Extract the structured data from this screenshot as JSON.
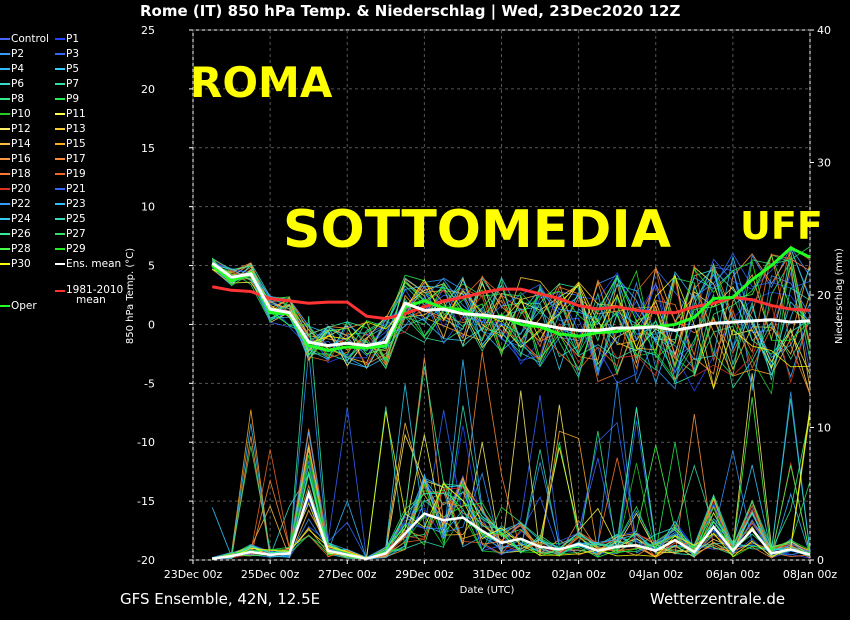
{
  "title": "Rome  (IT)  850 hPa Temp. & Niederschlag | Wed, 23Dec2020 12Z",
  "footer": {
    "left": "GFS Ensemble, 42N, 12.5E",
    "right": "Wetterzentrale.de"
  },
  "annotations": {
    "a1": "ROMA",
    "a2": "SOTTOMEDIA",
    "a3": "UFF"
  },
  "legend": [
    {
      "label": "Control",
      "color": "#4466ff"
    },
    {
      "label": "P1",
      "color": "#2244ff"
    },
    {
      "label": "P2",
      "color": "#3399ff"
    },
    {
      "label": "P3",
      "color": "#3366ff"
    },
    {
      "label": "P4",
      "color": "#33bbff"
    },
    {
      "label": "P5",
      "color": "#33ccff"
    },
    {
      "label": "P6",
      "color": "#33ddcc"
    },
    {
      "label": "P7",
      "color": "#33ddaa"
    },
    {
      "label": "P8",
      "color": "#33ee88"
    },
    {
      "label": "P9",
      "color": "#22ee55"
    },
    {
      "label": "P10",
      "color": "#22cc22"
    },
    {
      "label": "P11",
      "color": "#ffff44"
    },
    {
      "label": "P12",
      "color": "#ffee66"
    },
    {
      "label": "P13",
      "color": "#ffcc33"
    },
    {
      "label": "P14",
      "color": "#ffbb44"
    },
    {
      "label": "P15",
      "color": "#ffaa22"
    },
    {
      "label": "P16",
      "color": "#ff9944"
    },
    {
      "label": "P17",
      "color": "#ff8833"
    },
    {
      "label": "P18",
      "color": "#ff7733"
    },
    {
      "label": "P19",
      "color": "#ee6622"
    },
    {
      "label": "P20",
      "color": "#dd3322"
    },
    {
      "label": "P21",
      "color": "#3366ff"
    },
    {
      "label": "P22",
      "color": "#3399ff"
    },
    {
      "label": "P23",
      "color": "#33bbff"
    },
    {
      "label": "P24",
      "color": "#33ccee"
    },
    {
      "label": "P25",
      "color": "#33ddbb"
    },
    {
      "label": "P26",
      "color": "#33ee99"
    },
    {
      "label": "P27",
      "color": "#33dd66"
    },
    {
      "label": "P28",
      "color": "#44ff44"
    },
    {
      "label": "P29",
      "color": "#22ee22"
    },
    {
      "label": "P30",
      "color": "#ffff00"
    },
    {
      "label": "Ens. mean",
      "color": "#ffffff"
    },
    {
      "label": "Oper",
      "color": "#22ff22"
    },
    {
      "label": "1981-2010 mean",
      "color": "#ff3333"
    }
  ],
  "chart_data": {
    "type": "line",
    "title": "Rome  (IT)  850 hPa Temp. & Niederschlag | Wed, 23Dec2020 12Z",
    "xlabel": "Date (UTC)",
    "ylabel": "850 hPa Temp. (°C)",
    "y2label": "Niederschlag (mm)",
    "x_ticks": [
      "23Dec 00z",
      "25Dec 00z",
      "27Dec 00z",
      "29Dec 00z",
      "31Dec 00z",
      "02Jan 00z",
      "04Jan 00z",
      "06Jan 00z",
      "08Jan 00z"
    ],
    "xlim": [
      0,
      16
    ],
    "ylim": [
      -20,
      25
    ],
    "y_ticks": [
      -20,
      -15,
      -10,
      -5,
      0,
      5,
      10,
      15,
      20,
      25
    ],
    "y2lim": [
      0,
      40
    ],
    "y2_ticks": [
      0,
      10,
      20,
      30,
      40
    ],
    "grid": true,
    "legend_position": "left",
    "series": [
      {
        "name": "Ens. mean",
        "color": "#ffffff",
        "x": [
          0.5,
          1.0,
          1.5,
          2.0,
          2.5,
          3.0,
          3.5,
          4.0,
          4.5,
          5.0,
          5.5,
          6.0,
          6.5,
          7.0,
          7.5,
          8.0,
          8.5,
          9.0,
          9.5,
          10.0,
          10.5,
          11.0,
          11.5,
          12.0,
          12.5,
          13.0,
          13.5,
          14.0,
          14.5,
          15.0,
          15.5,
          16.0
        ],
        "y": [
          5.2,
          4.0,
          4.3,
          1.3,
          1.0,
          -1.5,
          -1.8,
          -1.6,
          -1.8,
          -1.5,
          1.8,
          1.2,
          1.3,
          0.9,
          0.8,
          0.6,
          0.3,
          0.0,
          -0.3,
          -0.5,
          -0.5,
          -0.3,
          -0.3,
          -0.2,
          -0.5,
          -0.2,
          0.1,
          0.2,
          0.3,
          0.4,
          0.2,
          0.3
        ]
      },
      {
        "name": "Oper",
        "color": "#22ff22",
        "x": [
          0.5,
          1.0,
          1.5,
          2.0,
          2.5,
          3.0,
          3.5,
          4.0,
          4.5,
          5.0,
          5.5,
          6.0,
          6.5,
          7.0,
          7.5,
          8.0,
          8.5,
          9.0,
          9.5,
          10.0,
          10.5,
          11.0,
          11.5,
          12.0,
          12.5,
          13.0,
          13.5,
          14.0,
          14.5,
          15.0,
          15.5,
          16.0
        ],
        "y": [
          5.0,
          3.7,
          4.4,
          1.0,
          0.9,
          -1.8,
          -2.2,
          -1.9,
          -2.0,
          -1.8,
          1.5,
          2.0,
          1.4,
          1.2,
          0.6,
          0.7,
          0.0,
          -0.2,
          -0.8,
          -1.0,
          -0.7,
          -0.6,
          -0.2,
          -0.2,
          0.0,
          0.6,
          2.2,
          2.3,
          3.8,
          5.0,
          6.5,
          5.7
        ]
      },
      {
        "name": "1981-2010 mean",
        "color": "#ff3333",
        "x": [
          0.5,
          1.0,
          1.5,
          2.0,
          2.5,
          3.0,
          3.5,
          4.0,
          4.5,
          5.0,
          5.5,
          6.0,
          6.5,
          7.0,
          7.5,
          8.0,
          8.5,
          9.0,
          9.5,
          10.0,
          10.5,
          11.0,
          11.5,
          12.0,
          12.5,
          13.0,
          13.5,
          14.0,
          14.5,
          15.0,
          15.5,
          16.0
        ],
        "y": [
          3.2,
          2.9,
          2.8,
          2.2,
          2.0,
          1.8,
          1.9,
          1.9,
          0.7,
          0.5,
          0.9,
          1.5,
          2.0,
          2.3,
          2.7,
          3.0,
          3.0,
          2.6,
          2.2,
          1.6,
          1.3,
          1.5,
          1.2,
          1.0,
          1.0,
          1.5,
          1.8,
          2.3,
          2.1,
          1.6,
          1.3,
          1.2
        ]
      }
    ],
    "precip_mean": {
      "name": "Ens. mean precipitation",
      "color": "#ffffff",
      "x": [
        0.5,
        1.0,
        1.5,
        2.0,
        2.5,
        3.0,
        3.5,
        4.0,
        4.5,
        5.0,
        5.5,
        6.0,
        6.5,
        7.0,
        7.5,
        8.0,
        8.5,
        9.0,
        9.5,
        10.0,
        10.5,
        11.0,
        11.5,
        12.0,
        12.5,
        13.0,
        13.5,
        14.0,
        14.5,
        15.0,
        15.5,
        16.0
      ],
      "y": [
        0.1,
        0.3,
        0.6,
        0.4,
        0.5,
        5.0,
        0.7,
        0.4,
        0.1,
        0.5,
        2.0,
        3.5,
        3.0,
        3.2,
        2.2,
        1.3,
        1.6,
        1.0,
        0.8,
        1.2,
        0.7,
        1.0,
        1.1,
        0.7,
        1.5,
        0.6,
        2.5,
        0.7,
        2.3,
        0.5,
        0.8,
        0.4
      ]
    }
  }
}
